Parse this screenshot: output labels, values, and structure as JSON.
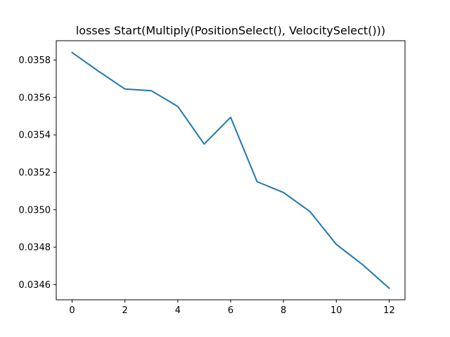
{
  "chart_data": {
    "type": "line",
    "title": "losses Start(Multiply(PositionSelect(), VelocitySelect()))",
    "xlabel": "",
    "ylabel": "",
    "x": [
      0,
      1,
      2,
      3,
      4,
      5,
      6,
      7,
      8,
      9,
      10,
      11,
      12
    ],
    "series": [
      {
        "values": [
          0.03584,
          0.03574,
          0.035645,
          0.035636,
          0.035552,
          0.035351,
          0.035494,
          0.03515,
          0.035092,
          0.034991,
          0.034815,
          0.034706,
          0.034581
        ],
        "color": "#1f77b4"
      }
    ],
    "xlim": [
      -0.6,
      12.6
    ],
    "ylim": [
      0.034519,
      0.035903
    ],
    "xticks": [
      0,
      2,
      4,
      6,
      8,
      10,
      12
    ],
    "xtick_labels": [
      "0",
      "2",
      "4",
      "6",
      "8",
      "10",
      "12"
    ],
    "yticks": [
      0.0346,
      0.0348,
      0.035,
      0.0352,
      0.0354,
      0.0356,
      0.0358
    ],
    "ytick_labels": [
      "0.0346",
      "0.0348",
      "0.0350",
      "0.0352",
      "0.0354",
      "0.0356",
      "0.0358"
    ],
    "grid": false,
    "legend": "none"
  }
}
